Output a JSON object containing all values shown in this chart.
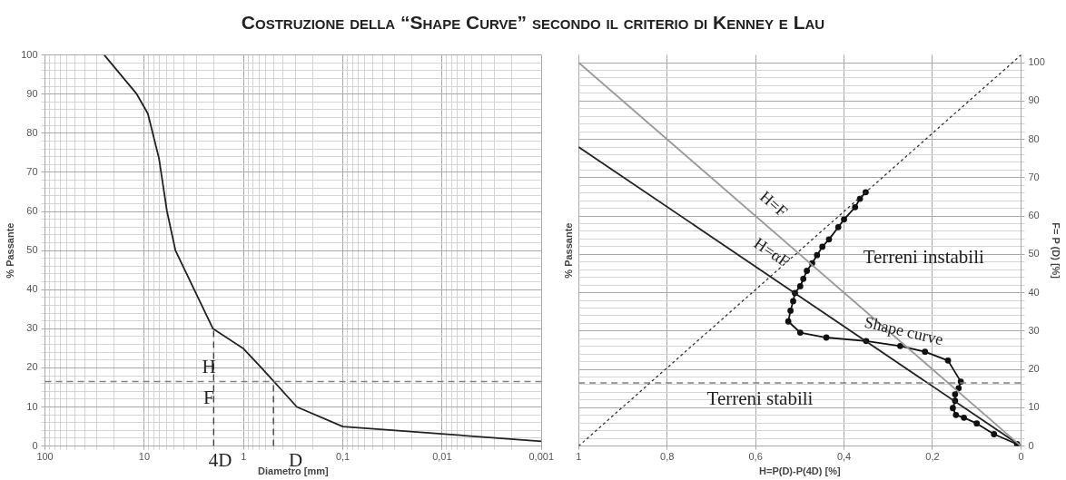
{
  "chart_data": [
    {
      "type": "line",
      "title": "Costruzione della “Shape Curve” secondo il criterio di Kenney e Lau",
      "xlabel": "Diametro [mm]",
      "ylabel": "% Passante",
      "log": "x",
      "marker": "none",
      "grid": true,
      "xlim": [
        100,
        0.001
      ],
      "xticks": [
        100,
        {
          "value": 90,
          "label": null
        },
        {
          "value": 80,
          "label": null
        },
        {
          "value": 70,
          "label": null
        },
        {
          "value": 60,
          "label": null
        },
        {
          "value": 50,
          "label": null
        },
        {
          "value": 40,
          "label": null
        },
        {
          "value": 30,
          "label": null
        },
        {
          "value": 20,
          "label": null
        },
        10,
        {
          "value": 9,
          "label": null
        },
        {
          "value": 8,
          "label": null
        },
        {
          "value": 7,
          "label": null
        },
        {
          "value": 6,
          "label": null
        },
        {
          "value": 5,
          "label": null
        },
        {
          "value": 4,
          "label": null
        },
        {
          "value": 3,
          "label": null
        },
        {
          "value": 2,
          "label": null
        },
        1,
        {
          "value": 0.9,
          "label": null
        },
        {
          "value": 0.8,
          "label": null
        },
        {
          "value": 0.7,
          "label": null
        },
        {
          "value": 0.6,
          "label": null
        },
        {
          "value": 0.5,
          "label": null
        },
        {
          "value": 0.4,
          "label": null
        },
        {
          "value": 0.3,
          "label": null
        },
        {
          "value": 0.2,
          "label": null
        },
        {
          "value": 0.1,
          "label": "0,1"
        },
        {
          "value": 0.09,
          "label": null
        },
        {
          "value": 0.08,
          "label": null
        },
        {
          "value": 0.07,
          "label": null
        },
        {
          "value": 0.06,
          "label": null
        },
        {
          "value": 0.05,
          "label": null
        },
        {
          "value": 0.04,
          "label": null
        },
        {
          "value": 0.03,
          "label": null
        },
        {
          "value": 0.02,
          "label": null
        },
        {
          "value": 0.01,
          "label": "0,01"
        },
        {
          "value": 0.009,
          "label": null
        },
        {
          "value": 0.008,
          "label": null
        },
        {
          "value": 0.007,
          "label": null
        },
        {
          "value": 0.006,
          "label": null
        },
        {
          "value": 0.005,
          "label": null
        },
        {
          "value": 0.004,
          "label": null
        },
        {
          "value": 0.003,
          "label": null
        },
        {
          "value": 0.002,
          "label": null
        },
        {
          "value": 0.001,
          "label": "0,001"
        }
      ],
      "ylim": [
        0,
        100
      ],
      "yticks": [
        0,
        {
          "value": 2,
          "label": null
        },
        {
          "value": 4,
          "label": null
        },
        {
          "value": 6,
          "label": null
        },
        {
          "value": 8,
          "label": null
        },
        10,
        {
          "value": 12,
          "label": null
        },
        {
          "value": 14,
          "label": null
        },
        {
          "value": 16,
          "label": null
        },
        {
          "value": 18,
          "label": null
        },
        20,
        {
          "value": 22,
          "label": null
        },
        {
          "value": 24,
          "label": null
        },
        {
          "value": 26,
          "label": null
        },
        {
          "value": 28,
          "label": null
        },
        30,
        {
          "value": 32,
          "label": null
        },
        {
          "value": 34,
          "label": null
        },
        {
          "value": 36,
          "label": null
        },
        {
          "value": 38,
          "label": null
        },
        40,
        {
          "value": 42,
          "label": null
        },
        {
          "value": 44,
          "label": null
        },
        {
          "value": 46,
          "label": null
        },
        {
          "value": 48,
          "label": null
        },
        50,
        {
          "value": 52,
          "label": null
        },
        {
          "value": 54,
          "label": null
        },
        {
          "value": 56,
          "label": null
        },
        {
          "value": 58,
          "label": null
        },
        60,
        {
          "value": 62,
          "label": null
        },
        {
          "value": 64,
          "label": null
        },
        {
          "value": 66,
          "label": null
        },
        {
          "value": 68,
          "label": null
        },
        70,
        {
          "value": 72,
          "label": null
        },
        {
          "value": 74,
          "label": null
        },
        {
          "value": 76,
          "label": null
        },
        {
          "value": 78,
          "label": null
        },
        80,
        {
          "value": 82,
          "label": null
        },
        {
          "value": 84,
          "label": null
        },
        {
          "value": 86,
          "label": null
        },
        {
          "value": 88,
          "label": null
        },
        90,
        {
          "value": 92,
          "label": null
        },
        {
          "value": 94,
          "label": null
        },
        {
          "value": 96,
          "label": null
        },
        {
          "value": 98,
          "label": null
        },
        100
      ],
      "series": [
        {
          "color": "#222222",
          "x": [
            25.3,
            11.9,
            9.2,
            7.1,
            5.9,
            4.85,
            2.03,
            1,
            0.66,
            0.29,
            0.1,
            0.001
          ],
          "values": [
            100,
            90,
            85,
            73.5,
            60,
            50,
            30,
            24.9,
            20,
            10,
            5,
            1.2
          ]
        },
        {
          "color": "#333333",
          "line_style": "dashed",
          "x": [
            2,
            2
          ],
          "values": [
            0,
            30
          ]
        },
        {
          "color": "#333333",
          "line_style": "dashed",
          "x": [
            0.5,
            0.5
          ],
          "values": [
            0,
            16.5
          ]
        }
      ],
      "ref_lines": [
        {
          "axis": "y",
          "value": 16.5,
          "color": "#808080",
          "line_style": "dashed"
        }
      ],
      "annotations": [
        "H",
        "F",
        "4D",
        "D"
      ]
    },
    {
      "type": "line",
      "xlabel": "H=P(D)-P(4D) [%]",
      "ylabel": "% Passante",
      "y2label": "F= P (D) [%]",
      "grid": true,
      "marker": "none",
      "xlim": [
        1,
        0
      ],
      "xticks": [
        1,
        {
          "value": 0.8,
          "label": "0,8"
        },
        {
          "value": 0.6,
          "label": "0,6"
        },
        {
          "value": 0.4,
          "label": "0,4"
        },
        {
          "value": 0.2,
          "label": "0,2"
        },
        0
      ],
      "y2lim": [
        0,
        102
      ],
      "y2ticks": [
        0,
        {
          "value": 2,
          "label": null
        },
        {
          "value": 4,
          "label": null
        },
        {
          "value": 6,
          "label": null
        },
        {
          "value": 8,
          "label": null
        },
        10,
        {
          "value": 12,
          "label": null
        },
        {
          "value": 14,
          "label": null
        },
        {
          "value": 16,
          "label": null
        },
        {
          "value": 18,
          "label": null
        },
        20,
        {
          "value": 22,
          "label": null
        },
        {
          "value": 24,
          "label": null
        },
        {
          "value": 26,
          "label": null
        },
        {
          "value": 28,
          "label": null
        },
        30,
        {
          "value": 32,
          "label": null
        },
        {
          "value": 34,
          "label": null
        },
        {
          "value": 36,
          "label": null
        },
        {
          "value": 38,
          "label": null
        },
        40,
        {
          "value": 42,
          "label": null
        },
        {
          "value": 44,
          "label": null
        },
        {
          "value": 46,
          "label": null
        },
        {
          "value": 48,
          "label": null
        },
        50,
        {
          "value": 52,
          "label": null
        },
        {
          "value": 54,
          "label": null
        },
        {
          "value": 56,
          "label": null
        },
        {
          "value": 58,
          "label": null
        },
        60,
        {
          "value": 62,
          "label": null
        },
        {
          "value": 64,
          "label": null
        },
        {
          "value": 66,
          "label": null
        },
        {
          "value": 68,
          "label": null
        },
        70,
        {
          "value": 72,
          "label": null
        },
        {
          "value": 74,
          "label": null
        },
        {
          "value": 76,
          "label": null
        },
        {
          "value": 78,
          "label": null
        },
        80,
        {
          "value": 82,
          "label": null
        },
        {
          "value": 84,
          "label": null
        },
        {
          "value": 86,
          "label": null
        },
        {
          "value": 88,
          "label": null
        },
        90,
        {
          "value": 92,
          "label": null
        },
        {
          "value": 94,
          "label": null
        },
        {
          "value": 96,
          "label": null
        },
        {
          "value": 98,
          "label": null
        },
        100
      ],
      "series": [
        {
          "name": "H=F",
          "color": "#999999",
          "axis": "y2",
          "x": [
            1,
            0
          ],
          "values": [
            100,
            0
          ]
        },
        {
          "name": "H=αF",
          "color": "#222222",
          "axis": "y2",
          "x": [
            1,
            0
          ],
          "values": [
            78,
            0
          ]
        },
        {
          "color": "#333333",
          "axis": "y2",
          "line_style": "dotted",
          "x": [
            1,
            0
          ],
          "values": [
            0,
            102
          ]
        },
        {
          "name": "Shape curve",
          "color": "#111111",
          "axis": "y2",
          "marker": "circle",
          "x": [
            0.351,
            0.364,
            0.375,
            0.4,
            0.413,
            0.434,
            0.449,
            0.461,
            0.472,
            0.484,
            0.492,
            0.499,
            0.511,
            0.515,
            0.521,
            0.526,
            0.499,
            0.44,
            0.35,
            0.273,
            0.217,
            0.165,
            0.136,
            0.141,
            0.149,
            0.149,
            0.154,
            0.147,
            0.129,
            0.1,
            0.061,
            0.009
          ],
          "values": [
            66.2,
            64.5,
            62.3,
            59.1,
            57.1,
            53.9,
            52,
            49.8,
            47.7,
            45.7,
            43.6,
            41.7,
            39.9,
            37.8,
            35.3,
            32.5,
            29.6,
            28.3,
            27.4,
            26.1,
            24.6,
            22.3,
            16.8,
            15.1,
            13.5,
            11.8,
            9.9,
            8.1,
            7.4,
            5.9,
            3.1,
            0.5
          ]
        }
      ],
      "ref_lines": [
        {
          "axis": "y2",
          "value": 16.5,
          "color": "#808080",
          "line_style": "dashed"
        }
      ],
      "annotations": [
        "Terreni instabili",
        "Terreni stabili"
      ]
    }
  ]
}
